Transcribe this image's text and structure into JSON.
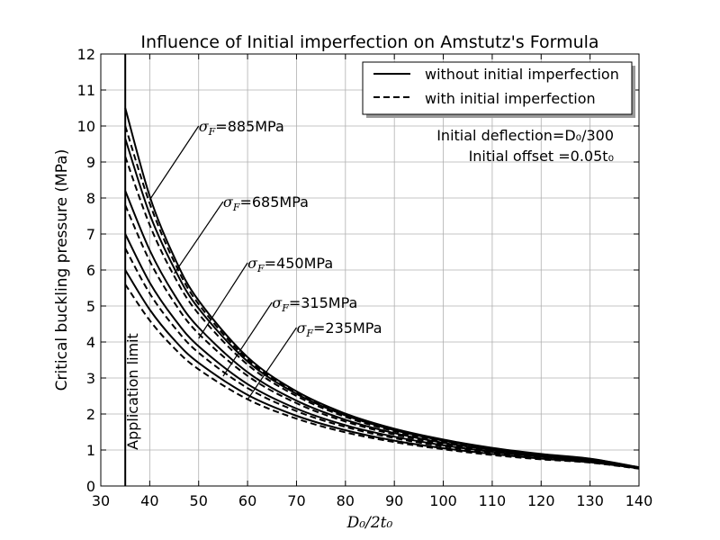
{
  "chart_data": {
    "type": "line",
    "title": "Influence of Initial imperfection on Amstutz's Formula",
    "xlabel": "D₀/2t₀",
    "ylabel": "Critical buckling pressure (MPa)",
    "xlim": [
      30,
      140
    ],
    "ylim": [
      0,
      12
    ],
    "xticks": [
      "30",
      "40",
      "50",
      "60",
      "70",
      "80",
      "90",
      "100",
      "110",
      "120",
      "130",
      "140"
    ],
    "yticks": [
      "0",
      "1",
      "2",
      "3",
      "4",
      "5",
      "6",
      "7",
      "8",
      "9",
      "10",
      "11",
      "12"
    ],
    "grid": true,
    "legend_position": "upper right",
    "legend": [
      "without initial imperfection",
      "with initial imperfection"
    ],
    "info": [
      "Initial deflection=D₀/300",
      "Initial offset =0.05t₀"
    ],
    "vline": {
      "x": 35,
      "label": "Application limit"
    },
    "series": [
      {
        "name": "σF=885MPa",
        "style": "solid",
        "x": [
          35,
          40,
          45,
          50,
          60,
          70,
          80,
          90,
          100,
          110,
          120,
          130,
          140
        ],
        "y": [
          10.5,
          8.05,
          6.36,
          5.15,
          3.58,
          2.63,
          2.01,
          1.59,
          1.29,
          1.06,
          0.89,
          0.76,
          0.52
        ]
      },
      {
        "name": "σF=885MPa",
        "style": "dashed",
        "x": [
          35,
          40,
          45,
          50,
          60,
          70,
          80,
          90,
          100,
          110,
          120,
          130,
          140
        ],
        "y": [
          10.0,
          7.85,
          6.23,
          5.05,
          3.52,
          2.59,
          1.98,
          1.57,
          1.27,
          1.05,
          0.88,
          0.75,
          0.52
        ]
      },
      {
        "name": "σF=685MPa",
        "style": "solid",
        "x": [
          35,
          40,
          45,
          50,
          60,
          70,
          80,
          90,
          100,
          110,
          120,
          130,
          140
        ],
        "y": [
          9.65,
          7.55,
          6.05,
          4.93,
          3.46,
          2.56,
          1.96,
          1.55,
          1.26,
          1.04,
          0.88,
          0.75,
          0.51
        ]
      },
      {
        "name": "σF=685MPa",
        "style": "dashed",
        "x": [
          35,
          40,
          45,
          50,
          60,
          70,
          80,
          90,
          100,
          110,
          120,
          130,
          140
        ],
        "y": [
          9.15,
          7.25,
          5.83,
          4.78,
          3.37,
          2.5,
          1.92,
          1.52,
          1.24,
          1.02,
          0.86,
          0.74,
          0.51
        ]
      },
      {
        "name": "σF=450MPa",
        "style": "solid",
        "x": [
          35,
          40,
          45,
          50,
          60,
          70,
          80,
          90,
          100,
          110,
          120,
          130,
          140
        ],
        "y": [
          8.2,
          6.55,
          5.32,
          4.4,
          3.16,
          2.37,
          1.84,
          1.47,
          1.2,
          1.0,
          0.85,
          0.73,
          0.5
        ]
      },
      {
        "name": "σF=450MPa",
        "style": "dashed",
        "x": [
          35,
          40,
          45,
          50,
          60,
          70,
          80,
          90,
          100,
          110,
          120,
          130,
          140
        ],
        "y": [
          7.8,
          6.25,
          5.1,
          4.23,
          3.06,
          2.3,
          1.79,
          1.43,
          1.17,
          0.98,
          0.83,
          0.72,
          0.5
        ]
      },
      {
        "name": "σF=315MPa",
        "style": "solid",
        "x": [
          35,
          40,
          45,
          50,
          60,
          70,
          80,
          90,
          100,
          110,
          120,
          130,
          140
        ],
        "y": [
          7.0,
          5.65,
          4.65,
          3.88,
          2.83,
          2.15,
          1.69,
          1.37,
          1.13,
          0.95,
          0.81,
          0.7,
          0.5
        ]
      },
      {
        "name": "σF=315MPa",
        "style": "dashed",
        "x": [
          35,
          40,
          45,
          50,
          60,
          70,
          80,
          90,
          100,
          110,
          120,
          130,
          140
        ],
        "y": [
          6.6,
          5.35,
          4.42,
          3.7,
          2.72,
          2.08,
          1.64,
          1.33,
          1.1,
          0.93,
          0.79,
          0.69,
          0.49
        ]
      },
      {
        "name": "σF=235MPa",
        "style": "solid",
        "x": [
          35,
          40,
          45,
          50,
          60,
          70,
          80,
          90,
          100,
          110,
          120,
          130,
          140
        ],
        "y": [
          6.0,
          4.9,
          4.06,
          3.42,
          2.53,
          1.95,
          1.55,
          1.26,
          1.05,
          0.89,
          0.76,
          0.66,
          0.49
        ]
      },
      {
        "name": "σF=235MPa",
        "style": "dashed",
        "x": [
          35,
          40,
          45,
          50,
          60,
          70,
          80,
          90,
          100,
          110,
          120,
          130,
          140
        ],
        "y": [
          5.6,
          4.6,
          3.83,
          3.24,
          2.41,
          1.87,
          1.49,
          1.22,
          1.02,
          0.86,
          0.74,
          0.65,
          0.48
        ]
      }
    ],
    "annotations": [
      {
        "text": "=885MPa",
        "label_at": [
          50,
          10.0
        ],
        "arrow_to": [
          40,
          7.95
        ]
      },
      {
        "text": "=685MPa",
        "label_at": [
          55,
          7.9
        ],
        "arrow_to": [
          45,
          5.9
        ]
      },
      {
        "text": "=450MPa",
        "label_at": [
          60,
          6.2
        ],
        "arrow_to": [
          50,
          4.1
        ]
      },
      {
        "text": "=315MPa",
        "label_at": [
          65,
          5.1
        ],
        "arrow_to": [
          55,
          3.05
        ]
      },
      {
        "text": "=235MPa",
        "label_at": [
          70,
          4.4
        ],
        "arrow_to": [
          60,
          2.4
        ]
      }
    ]
  }
}
